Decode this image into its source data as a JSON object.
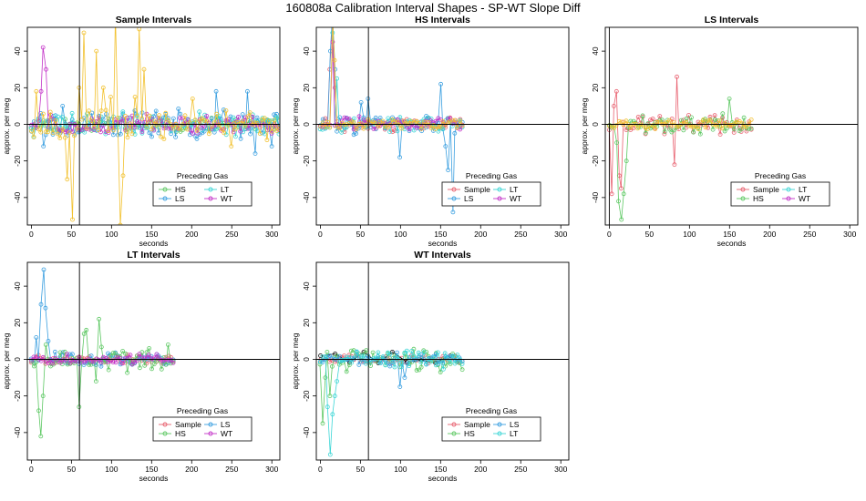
{
  "figure_title": "160808a   Calibration Interval Shapes - SP-WT Slope Diff",
  "colors": {
    "Sample": "#E8606F",
    "HS": "#5DC863",
    "LS": "#3A9FE0",
    "LT": "#3CD6D6",
    "WT": "#C333C8",
    "Std": "#F2C12E",
    "Ref": "#000000"
  },
  "chart_data": [
    {
      "type": "line",
      "title": "Sample Intervals",
      "xlabel": "seconds",
      "ylabel": "approx. per meg",
      "xlim": [
        -5,
        310
      ],
      "ylim": [
        -55,
        53
      ],
      "xticks": [
        0,
        50,
        100,
        150,
        200,
        250,
        300
      ],
      "yticks": [
        -40,
        -20,
        0,
        20,
        40
      ],
      "hline": 0,
      "vline": 60,
      "x_start": 0,
      "x_end": 310,
      "x_step": 3,
      "legend": {
        "title": "Preceding Gas",
        "entries": [
          "HS",
          "LT",
          "LS",
          "WT"
        ],
        "position": "bottom-center"
      },
      "series": [
        {
          "name": "HS",
          "colorKey": "HS",
          "amp": 3,
          "seed": 11,
          "spikes": []
        },
        {
          "name": "LS",
          "colorKey": "LS",
          "amp": 6,
          "seed": 23,
          "spikes": [
            [
              12,
              6
            ],
            [
              15,
              -12
            ],
            [
              40,
              10
            ],
            [
              230,
              18
            ],
            [
              270,
              18
            ],
            [
              280,
              -16
            ],
            [
              300,
              -12
            ]
          ]
        },
        {
          "name": "LT",
          "colorKey": "LT",
          "amp": 5,
          "seed": 37,
          "spikes": []
        },
        {
          "name": "WT",
          "colorKey": "WT",
          "amp": 4,
          "seed": 51,
          "spikes": [
            [
              15,
              42
            ],
            [
              18,
              30
            ],
            [
              12,
              18
            ]
          ]
        },
        {
          "name": "",
          "colorKey": "Std",
          "amp": 6,
          "seed": 67,
          "spikes": [
            [
              6,
              18
            ],
            [
              45,
              -30
            ],
            [
              50,
              -52
            ],
            [
              60,
              20
            ],
            [
              65,
              50
            ],
            [
              80,
              40
            ],
            [
              90,
              20
            ],
            [
              100,
              15
            ],
            [
              105,
              60
            ],
            [
              110,
              -55
            ],
            [
              115,
              -28
            ],
            [
              130,
              15
            ],
            [
              135,
              52
            ],
            [
              140,
              30
            ],
            [
              165,
              -8
            ],
            [
              200,
              14
            ],
            [
              250,
              -12
            ]
          ]
        }
      ]
    },
    {
      "type": "line",
      "title": "HS Intervals",
      "xlabel": "seconds",
      "ylabel": "approx. per meg",
      "xlim": [
        -5,
        310
      ],
      "ylim": [
        -55,
        53
      ],
      "xticks": [
        0,
        50,
        100,
        150,
        200,
        250,
        300
      ],
      "yticks": [
        -40,
        -20,
        0,
        20,
        40
      ],
      "hline": 0,
      "vline": 60,
      "x_start": 0,
      "x_end": 178,
      "x_step": 3,
      "legend": {
        "title": "Preceding Gas",
        "entries": [
          "Sample",
          "LT",
          "LS",
          "WT"
        ],
        "position": "bottom-center"
      },
      "series": [
        {
          "name": "Sample",
          "colorKey": "Sample",
          "amp": 3,
          "seed": 71,
          "spikes": [
            [
              12,
              30
            ],
            [
              15,
              55
            ],
            [
              18,
              20
            ]
          ]
        },
        {
          "name": "LS",
          "colorKey": "LS",
          "amp": 4,
          "seed": 83,
          "spikes": [
            [
              12,
              40
            ],
            [
              15,
              60
            ],
            [
              18,
              30
            ],
            [
              50,
              12
            ],
            [
              60,
              14
            ],
            [
              100,
              -18
            ],
            [
              150,
              22
            ],
            [
              155,
              -12
            ],
            [
              165,
              -48
            ],
            [
              160,
              -25
            ]
          ]
        },
        {
          "name": "LT",
          "colorKey": "LT",
          "amp": 3,
          "seed": 97,
          "spikes": [
            [
              15,
              50
            ],
            [
              20,
              25
            ]
          ]
        },
        {
          "name": "WT",
          "colorKey": "WT",
          "amp": 3,
          "seed": 103,
          "spikes": [
            [
              14,
              45
            ]
          ]
        },
        {
          "name": "",
          "colorKey": "Std",
          "amp": 2,
          "seed": 111,
          "spikes": [
            [
              15,
              55
            ],
            [
              18,
              35
            ]
          ]
        }
      ]
    },
    {
      "type": "line",
      "title": "LS Intervals",
      "xlabel": "seconds",
      "ylabel": "approx. per meg",
      "xlim": [
        -5,
        310
      ],
      "ylim": [
        -55,
        53
      ],
      "xticks": [
        0,
        50,
        100,
        150,
        200,
        250,
        300
      ],
      "yticks": [
        -40,
        -20,
        0,
        20,
        40
      ],
      "hline": 0,
      "vline": 0,
      "x_start": 0,
      "x_end": 178,
      "x_step": 3,
      "legend": {
        "title": "Preceding Gas",
        "entries": [
          "Sample",
          "LT",
          "HS",
          "WT"
        ],
        "position": "bottom-center"
      },
      "series": [
        {
          "name": "Sample",
          "colorKey": "Sample",
          "amp": 4,
          "seed": 131,
          "spikes": [
            [
              3,
              -38
            ],
            [
              6,
              10
            ],
            [
              9,
              18
            ],
            [
              12,
              -28
            ],
            [
              15,
              -35
            ],
            [
              85,
              26
            ],
            [
              80,
              -22
            ]
          ]
        },
        {
          "name": "HS",
          "colorKey": "HS",
          "amp": 4,
          "seed": 149,
          "spikes": [
            [
              9,
              -10
            ],
            [
              12,
              -42
            ],
            [
              15,
              -52
            ],
            [
              18,
              -38
            ],
            [
              21,
              -20
            ],
            [
              150,
              14
            ]
          ]
        },
        {
          "name": "",
          "colorKey": "Std",
          "amp": 2,
          "seed": 157,
          "spikes": []
        }
      ]
    },
    {
      "type": "line",
      "title": "LT Intervals",
      "xlabel": "seconds",
      "ylabel": "approx. per meg",
      "xlim": [
        -5,
        310
      ],
      "ylim": [
        -55,
        53
      ],
      "xticks": [
        0,
        50,
        100,
        150,
        200,
        250,
        300
      ],
      "yticks": [
        -40,
        -20,
        0,
        20,
        40
      ],
      "hline": 0,
      "vline": 60,
      "x_start": 0,
      "x_end": 178,
      "x_step": 3,
      "legend": {
        "title": "Preceding Gas",
        "entries": [
          "Sample",
          "LS",
          "HS",
          "WT"
        ],
        "position": "bottom-center"
      },
      "series": [
        {
          "name": "Sample",
          "colorKey": "Sample",
          "amp": 2,
          "seed": 163,
          "spikes": []
        },
        {
          "name": "LS",
          "colorKey": "LS",
          "amp": 3,
          "seed": 173,
          "spikes": [
            [
              12,
              30
            ],
            [
              15,
              49
            ],
            [
              18,
              28
            ],
            [
              21,
              10
            ],
            [
              6,
              12
            ]
          ]
        },
        {
          "name": "HS",
          "colorKey": "HS",
          "amp": 5,
          "seed": 181,
          "spikes": [
            [
              9,
              -28
            ],
            [
              12,
              -42
            ],
            [
              15,
              -20
            ],
            [
              18,
              8
            ],
            [
              60,
              -26
            ],
            [
              70,
              16
            ],
            [
              80,
              -12
            ],
            [
              85,
              22
            ],
            [
              65,
              14
            ],
            [
              170,
              8
            ]
          ]
        },
        {
          "name": "WT",
          "colorKey": "WT",
          "amp": 2,
          "seed": 191,
          "spikes": []
        }
      ]
    },
    {
      "type": "line",
      "title": "WT Intervals",
      "xlabel": "seconds",
      "ylabel": "approx. per meg",
      "xlim": [
        -5,
        310
      ],
      "ylim": [
        -55,
        53
      ],
      "xticks": [
        0,
        50,
        100,
        150,
        200,
        250,
        300
      ],
      "yticks": [
        -40,
        -20,
        0,
        20,
        40
      ],
      "hline": 0,
      "vline": 60,
      "x_start": 0,
      "x_end": 178,
      "x_step": 3,
      "legend": {
        "title": "Preceding Gas",
        "entries": [
          "Sample",
          "LS",
          "HS",
          "LT"
        ],
        "position": "bottom-center"
      },
      "series": [
        {
          "name": "Sample",
          "colorKey": "Sample",
          "amp": 2,
          "seed": 193,
          "spikes": []
        },
        {
          "name": "",
          "colorKey": "Ref",
          "amp": 2,
          "seed": 197,
          "spikes": [
            [
              0,
              33
            ],
            [
              3,
              33
            ],
            [
              6,
              17
            ],
            [
              9,
              2
            ],
            [
              15,
              5
            ],
            [
              20,
              3
            ],
            [
              55,
              4
            ],
            [
              90,
              4
            ]
          ],
          "sparse": 6
        },
        {
          "name": "HS",
          "colorKey": "HS",
          "amp": 5,
          "seed": 199,
          "spikes": [
            [
              3,
              -35
            ],
            [
              6,
              -10
            ],
            [
              9,
              4
            ],
            [
              12,
              -20
            ]
          ]
        },
        {
          "name": "LS",
          "colorKey": "LS",
          "amp": 3,
          "seed": 211,
          "spikes": [
            [
              100,
              -15
            ],
            [
              105,
              -10
            ]
          ]
        },
        {
          "name": "LT",
          "colorKey": "LT",
          "amp": 4,
          "seed": 223,
          "spikes": [
            [
              9,
              -26
            ],
            [
              12,
              -52
            ],
            [
              15,
              -30
            ],
            [
              18,
              -20
            ],
            [
              21,
              -12
            ]
          ]
        }
      ]
    }
  ]
}
